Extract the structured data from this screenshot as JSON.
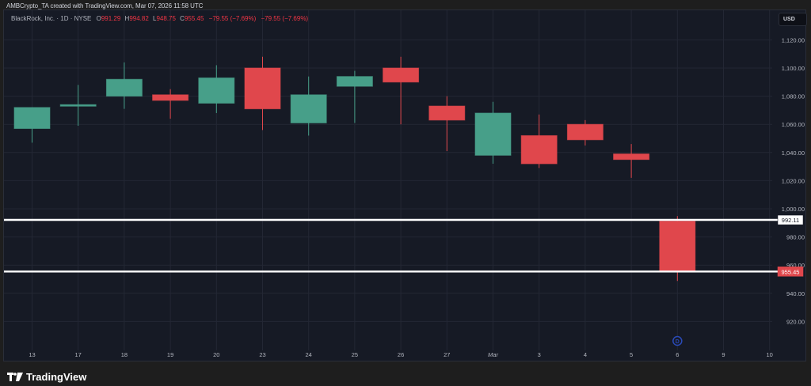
{
  "header": {
    "attribution": "AMBCrypto_TA created with TradingView.com, Mar 07, 2026 11:58 UTC"
  },
  "legend": {
    "symbol": "BlackRock, Inc. · 1D · NYSE",
    "o_label": "O",
    "o_value": "991.29",
    "h_label": "H",
    "h_value": "994.82",
    "l_label": "L",
    "l_value": "948.75",
    "c_label": "C",
    "c_value": "955.45",
    "change_1": "−79.55 (−7.69%)",
    "change_2": "−79.55 (−7.69%)"
  },
  "currency_button": "USD",
  "footer": {
    "brand": "TradingView"
  },
  "colors": {
    "background": "#161a25",
    "grid": "#232734",
    "up": "#479f89",
    "down": "#e0474c",
    "axis_text": "#b2b5be",
    "level_line": "#ffffff",
    "last_price_badge": "#e0474c",
    "dividend_marker": "#2a4ab8"
  },
  "chart_data": {
    "type": "candlestick",
    "title": "BlackRock, Inc. · 1D · NYSE",
    "xlabel": "",
    "ylabel": "USD",
    "ylim": [
      910,
      1125
    ],
    "grid": true,
    "categories": [
      "13",
      "17",
      "18",
      "19",
      "20",
      "23",
      "24",
      "25",
      "26",
      "27",
      "Mar",
      "3",
      "4",
      "5",
      "6"
    ],
    "x_axis_labels": [
      "13",
      "17",
      "18",
      "19",
      "20",
      "23",
      "24",
      "25",
      "26",
      "27",
      "Mar",
      "3",
      "4",
      "5",
      "6",
      "9",
      "10"
    ],
    "y_ticks": [
      "1,120.00",
      "1,100.00",
      "1,080.00",
      "1,060.00",
      "1,040.00",
      "1,020.00",
      "1,000.00",
      "980.00",
      "960.00",
      "940.00",
      "920.00"
    ],
    "y_tick_values": [
      1120,
      1100,
      1080,
      1060,
      1040,
      1020,
      1000,
      980,
      960,
      940,
      920
    ],
    "series": [
      {
        "name": "open",
        "values": [
          1057,
          1073,
          1080,
          1081,
          1075,
          1100,
          1061,
          1087,
          1100,
          1073,
          1038,
          1052,
          1060,
          1039,
          991.29
        ]
      },
      {
        "name": "high",
        "values": [
          1072,
          1088,
          1104,
          1085,
          1102,
          1108,
          1094,
          1098,
          1108,
          1080,
          1076,
          1067,
          1063,
          1046,
          994.82
        ]
      },
      {
        "name": "low",
        "values": [
          1047,
          1059,
          1071,
          1064,
          1068,
          1056,
          1052,
          1061,
          1060,
          1041,
          1032,
          1029,
          1045,
          1022,
          948.75
        ]
      },
      {
        "name": "close",
        "values": [
          1072,
          1074,
          1092,
          1077,
          1093,
          1071,
          1081,
          1094,
          1090,
          1063,
          1068,
          1032,
          1049,
          1035,
          955.45
        ]
      }
    ],
    "horizontal_levels": [
      {
        "value": 992.11,
        "label": "992.11",
        "style": "white"
      },
      {
        "value": 955.45,
        "label": "955.45",
        "style": "last-price"
      }
    ],
    "annotations": [
      {
        "type": "dividend",
        "label": "D",
        "x": "6"
      }
    ],
    "legend_values": {
      "open": 991.29,
      "high": 994.82,
      "low": 948.75,
      "close": 955.45,
      "change": -79.55,
      "change_pct": -7.69
    }
  }
}
